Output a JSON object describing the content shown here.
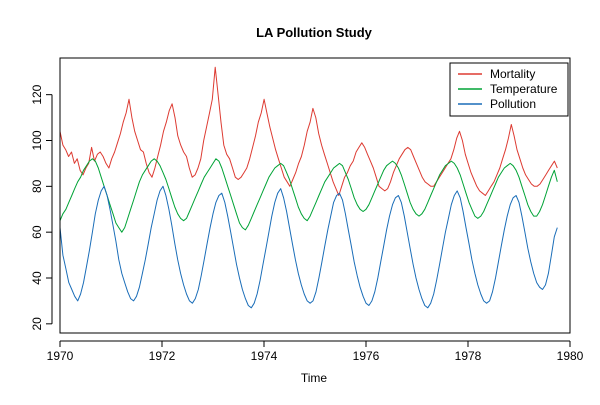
{
  "chart_data": {
    "type": "line",
    "title": "LA Pollution Study",
    "xlabel": "Time",
    "ylabel": "",
    "xlim": [
      1970,
      1980
    ],
    "ylim": [
      16,
      136
    ],
    "x_ticks": [
      1970,
      1972,
      1974,
      1976,
      1978,
      1980
    ],
    "y_ticks": [
      20,
      40,
      60,
      80,
      100,
      120
    ],
    "x_tick_labels": [
      "1970",
      "1972",
      "1974",
      "1976",
      "1978",
      "1980"
    ],
    "y_tick_labels": [
      "20",
      "40",
      "60",
      "80",
      "100",
      "120"
    ],
    "grid": false,
    "legend_position": "top-right",
    "frequency": "weekly",
    "x_start": 1970.0,
    "x_end": 1979.75,
    "series": [
      {
        "name": "Mortality",
        "color": "#dd3b32",
        "values": [
          104,
          98,
          96,
          93,
          95,
          90,
          92,
          87,
          85,
          88,
          90,
          97,
          91,
          94,
          95,
          93,
          90,
          88,
          92,
          95,
          99,
          103,
          108,
          112,
          118,
          110,
          104,
          100,
          96,
          95,
          90,
          86,
          84,
          88,
          93,
          98,
          104,
          108,
          113,
          116,
          110,
          102,
          98,
          95,
          93,
          88,
          84,
          85,
          88,
          92,
          100,
          106,
          112,
          118,
          132,
          120,
          108,
          98,
          94,
          92,
          88,
          84,
          83,
          84,
          86,
          88,
          92,
          97,
          102,
          108,
          112,
          118,
          112,
          106,
          101,
          96,
          92,
          88,
          84,
          82,
          80,
          83,
          86,
          90,
          93,
          98,
          104,
          108,
          114,
          110,
          103,
          98,
          94,
          90,
          86,
          82,
          79,
          76,
          80,
          84,
          86,
          89,
          91,
          95,
          97,
          99,
          97,
          94,
          91,
          88,
          84,
          80,
          79,
          78,
          79,
          82,
          86,
          89,
          92,
          94,
          96,
          97,
          96,
          93,
          90,
          87,
          84,
          82,
          81,
          80,
          80,
          82,
          84,
          86,
          88,
          90,
          92,
          96,
          101,
          104,
          100,
          94,
          90,
          86,
          83,
          80,
          78,
          77,
          76,
          78,
          80,
          82,
          85,
          88,
          92,
          96,
          101,
          107,
          102,
          96,
          92,
          88,
          85,
          83,
          81,
          80,
          80,
          81,
          83,
          85,
          87,
          89,
          91,
          88
        ]
      },
      {
        "name": "Temperature",
        "color": "#00a336",
        "values": [
          65,
          68,
          70,
          73,
          76,
          79,
          82,
          84,
          87,
          89,
          91,
          92,
          91,
          88,
          84,
          80,
          76,
          72,
          68,
          64,
          62,
          60,
          62,
          66,
          70,
          74,
          78,
          82,
          85,
          87,
          89,
          91,
          92,
          91,
          89,
          86,
          83,
          79,
          75,
          71,
          68,
          66,
          65,
          66,
          69,
          72,
          75,
          78,
          81,
          84,
          86,
          88,
          90,
          92,
          91,
          88,
          84,
          80,
          76,
          72,
          68,
          64,
          62,
          61,
          63,
          66,
          69,
          72,
          75,
          78,
          81,
          84,
          86,
          88,
          89,
          90,
          89,
          86,
          83,
          79,
          75,
          71,
          68,
          66,
          65,
          67,
          70,
          73,
          76,
          79,
          82,
          84,
          86,
          88,
          89,
          90,
          89,
          86,
          83,
          79,
          75,
          72,
          70,
          69,
          70,
          72,
          75,
          78,
          81,
          84,
          87,
          89,
          90,
          91,
          90,
          88,
          85,
          81,
          77,
          73,
          70,
          68,
          67,
          68,
          70,
          73,
          76,
          79,
          82,
          85,
          87,
          89,
          90,
          91,
          90,
          88,
          85,
          81,
          77,
          73,
          70,
          67,
          66,
          67,
          69,
          72,
          75,
          78,
          81,
          84,
          86,
          88,
          89,
          90,
          89,
          87,
          84,
          80,
          76,
          72,
          69,
          67,
          67,
          69,
          72,
          76,
          80,
          84,
          87,
          82
        ]
      },
      {
        "name": "Pollution",
        "color": "#1a6db8",
        "values": [
          62,
          50,
          44,
          38,
          35,
          32,
          30,
          33,
          38,
          45,
          52,
          60,
          68,
          74,
          78,
          80,
          76,
          70,
          63,
          56,
          48,
          42,
          38,
          34,
          31,
          30,
          32,
          36,
          42,
          48,
          55,
          62,
          68,
          74,
          78,
          80,
          76,
          70,
          63,
          55,
          48,
          42,
          37,
          33,
          30,
          29,
          31,
          35,
          41,
          48,
          55,
          62,
          68,
          73,
          76,
          77,
          73,
          67,
          60,
          53,
          46,
          40,
          35,
          31,
          28,
          27,
          29,
          33,
          39,
          46,
          53,
          60,
          67,
          73,
          77,
          79,
          75,
          69,
          62,
          55,
          48,
          42,
          37,
          33,
          30,
          29,
          30,
          34,
          40,
          47,
          54,
          61,
          67,
          73,
          76,
          77,
          74,
          68,
          61,
          54,
          47,
          41,
          36,
          32,
          29,
          28,
          30,
          34,
          40,
          47,
          54,
          61,
          67,
          72,
          75,
          76,
          73,
          67,
          60,
          53,
          46,
          40,
          35,
          31,
          28,
          27,
          29,
          33,
          39,
          46,
          53,
          60,
          66,
          72,
          76,
          78,
          75,
          69,
          62,
          55,
          48,
          42,
          37,
          33,
          30,
          29,
          30,
          34,
          40,
          47,
          54,
          61,
          67,
          72,
          75,
          76,
          73,
          67,
          60,
          53,
          47,
          42,
          38,
          36,
          35,
          37,
          42,
          50,
          58,
          62
        ]
      }
    ]
  }
}
